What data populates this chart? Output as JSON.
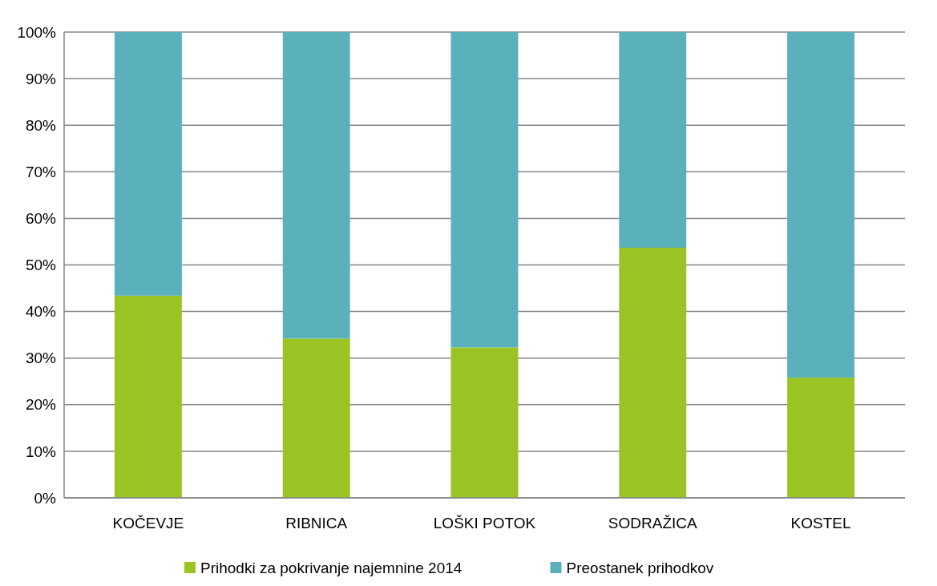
{
  "chart_data": {
    "type": "bar",
    "stacked": true,
    "categories": [
      "KOČEVJE",
      "RIBNICA",
      "LOŠKI POTOK",
      "SODRAŽICA",
      "KOSTEL"
    ],
    "series": [
      {
        "name": "Prihodki za pokrivanje najemnine 2014",
        "color": "#9ac424",
        "values": [
          43.4,
          34.2,
          32.3,
          53.7,
          25.8
        ]
      },
      {
        "name": "Preostanek prihodkov",
        "color": "#5bb1bb",
        "values": [
          56.6,
          65.8,
          67.7,
          46.3,
          74.2
        ]
      }
    ],
    "ylim": [
      0,
      100
    ],
    "yticks": [
      {
        "value": 0,
        "label": "0%"
      },
      {
        "value": 10,
        "label": "10%"
      },
      {
        "value": 20,
        "label": "20%"
      },
      {
        "value": 30,
        "label": "30%"
      },
      {
        "value": 40,
        "label": "40%"
      },
      {
        "value": 50,
        "label": "50%"
      },
      {
        "value": 60,
        "label": "60%"
      },
      {
        "value": 70,
        "label": "70%"
      },
      {
        "value": 80,
        "label": "80%"
      },
      {
        "value": 90,
        "label": "90%"
      },
      {
        "value": 100,
        "label": "100%"
      }
    ],
    "grid": "y",
    "legend": "bottom"
  }
}
